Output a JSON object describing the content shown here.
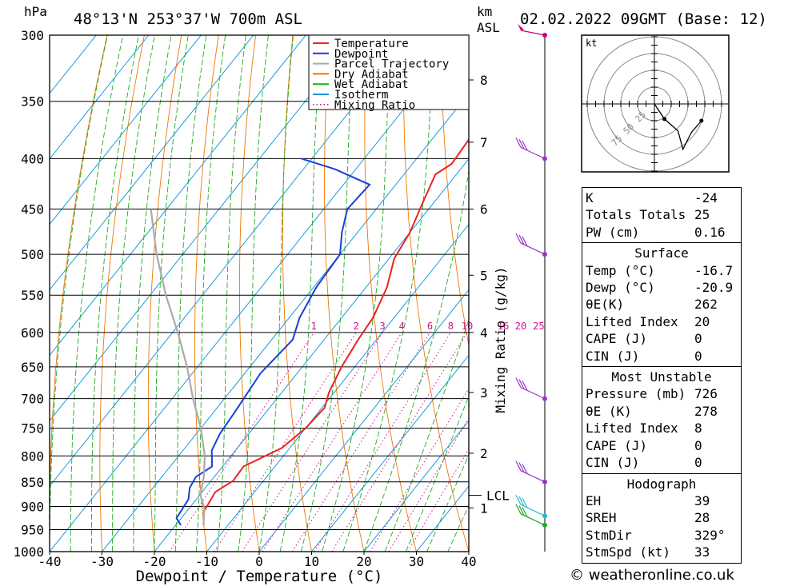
{
  "header": {
    "pressure_unit": "hPa",
    "location": "48°13'N  253°37'W  700m  ASL",
    "km_label": "km",
    "asl_label": "ASL",
    "datetime": "02.02.2022  09GMT  (Base: 12)"
  },
  "legend": [
    {
      "label": "Temperature",
      "color": "#ee2222",
      "style": "solid"
    },
    {
      "label": "Dewpoint",
      "color": "#1a3fd6",
      "style": "solid"
    },
    {
      "label": "Parcel Trajectory",
      "color": "#aaaaaa",
      "style": "solid"
    },
    {
      "label": "Dry Adiabat",
      "color": "#ee7700",
      "style": "solid"
    },
    {
      "label": "Wet Adiabat",
      "color": "#22aa22",
      "style": "solid"
    },
    {
      "label": "Isotherm",
      "color": "#1199dd",
      "style": "solid"
    },
    {
      "label": "Mixing Ratio",
      "color": "#cc1188",
      "style": "dotted"
    }
  ],
  "chart_data": {
    "type": "line",
    "xlabel": "Dewpoint / Temperature (°C)",
    "ylabel_right": "Mixing Ratio (g/kg)",
    "x_ticks": [
      -40,
      -30,
      -20,
      -10,
      0,
      10,
      20,
      30,
      40
    ],
    "pressure_levels": [
      300,
      350,
      400,
      450,
      500,
      550,
      600,
      650,
      700,
      750,
      800,
      850,
      900,
      950,
      1000
    ],
    "km_ticks": [
      {
        "label": "8",
        "p": 333
      },
      {
        "label": "7",
        "p": 385
      },
      {
        "label": "6",
        "p": 450
      },
      {
        "label": "5",
        "p": 525
      },
      {
        "label": "4",
        "p": 600
      },
      {
        "label": "3",
        "p": 690
      },
      {
        "label": "2",
        "p": 795
      },
      {
        "label": "1",
        "p": 903
      }
    ],
    "lcl": {
      "label": "LCL",
      "p": 877
    },
    "mixing_ratio_labels": [
      "1",
      "2",
      "3",
      "4",
      "6",
      "8",
      "10",
      "16",
      "20",
      "25"
    ],
    "mixing_ratio_values": [
      1,
      2,
      3,
      4,
      6,
      8,
      10,
      16,
      20,
      25
    ],
    "series": [
      {
        "name": "Temperature",
        "color": "#ee2222",
        "points": [
          [
            -14.7,
            940
          ],
          [
            -16.7,
            910
          ],
          [
            -17.5,
            870
          ],
          [
            -15.8,
            848
          ],
          [
            -16,
            820
          ],
          [
            -11.5,
            785
          ],
          [
            -10,
            750
          ],
          [
            -9.5,
            715
          ],
          [
            -11,
            690
          ],
          [
            -12.5,
            650
          ],
          [
            -13.5,
            610
          ],
          [
            -14,
            580
          ],
          [
            -16,
            540
          ],
          [
            -19,
            505
          ],
          [
            -20,
            475
          ],
          [
            -22,
            445
          ],
          [
            -24,
            415
          ],
          [
            -22.5,
            405
          ],
          [
            -23.2,
            370
          ],
          [
            -23,
            350
          ],
          [
            -22,
            320
          ],
          [
            -22.4,
            300
          ]
        ]
      },
      {
        "name": "Dewpoint",
        "color": "#1a3fd6",
        "points": [
          [
            -19,
            940
          ],
          [
            -20.9,
            925
          ],
          [
            -21.5,
            885
          ],
          [
            -23,
            862
          ],
          [
            -23.5,
            840
          ],
          [
            -22,
            820
          ],
          [
            -24.5,
            790
          ],
          [
            -25.5,
            760
          ],
          [
            -26,
            720
          ],
          [
            -27,
            660
          ],
          [
            -26,
            610
          ],
          [
            -28,
            580
          ],
          [
            -29.5,
            540
          ],
          [
            -30,
            500
          ],
          [
            -33,
            475
          ],
          [
            -35.5,
            450
          ],
          [
            -35,
            425
          ],
          [
            -44,
            410
          ],
          [
            -52,
            400
          ]
        ]
      },
      {
        "name": "Parcel Trajectory",
        "color": "#aaaaaa",
        "points": [
          [
            -14.7,
            940
          ],
          [
            -17,
            905
          ],
          [
            -19.8,
            877
          ],
          [
            -22,
            840
          ],
          [
            -25,
            800
          ],
          [
            -30,
            750
          ],
          [
            -36,
            700
          ],
          [
            -42,
            650
          ],
          [
            -49,
            600
          ],
          [
            -57,
            550
          ],
          [
            -65,
            500
          ],
          [
            -73,
            450
          ]
        ]
      }
    ]
  },
  "winds": [
    {
      "p": 300,
      "color": "#cc0077"
    },
    {
      "p": 400,
      "color": "#9933cc"
    },
    {
      "p": 500,
      "color": "#9933cc"
    },
    {
      "p": 700,
      "color": "#9933cc"
    },
    {
      "p": 850,
      "color": "#9933cc"
    },
    {
      "p": 920,
      "color": "#22bbcc"
    },
    {
      "p": 940,
      "color": "#22aa22"
    }
  ],
  "hodograph": {
    "unit_label": "kt",
    "ring_labels": [
      "25",
      "50",
      "75"
    ],
    "trace": [
      [
        0,
        0
      ],
      [
        6,
        -9
      ],
      [
        14,
        -16
      ],
      [
        17,
        -27
      ],
      [
        22,
        -17
      ],
      [
        28,
        -10
      ]
    ]
  },
  "indices": {
    "top": [
      {
        "label": "K",
        "value": "-24"
      },
      {
        "label": "Totals Totals",
        "value": "25"
      },
      {
        "label": "PW (cm)",
        "value": "0.16"
      }
    ],
    "surface": {
      "title": "Surface",
      "rows": [
        {
          "label": "Temp (°C)",
          "value": "-16.7"
        },
        {
          "label": "Dewp (°C)",
          "value": "-20.9"
        },
        {
          "label": "θE(K)",
          "value": "262"
        },
        {
          "label": "Lifted Index",
          "value": "20"
        },
        {
          "label": "CAPE (J)",
          "value": "0"
        },
        {
          "label": "CIN (J)",
          "value": "0"
        }
      ]
    },
    "most_unstable": {
      "title": "Most Unstable",
      "rows": [
        {
          "label": "Pressure (mb)",
          "value": "726"
        },
        {
          "label": "θE (K)",
          "value": "278"
        },
        {
          "label": "Lifted Index",
          "value": "8"
        },
        {
          "label": "CAPE (J)",
          "value": "0"
        },
        {
          "label": "CIN (J)",
          "value": "0"
        }
      ]
    },
    "hodo": {
      "title": "Hodograph",
      "rows": [
        {
          "label": "EH",
          "value": "39"
        },
        {
          "label": "SREH",
          "value": "28"
        },
        {
          "label": "StmDir",
          "value": "329°"
        },
        {
          "label": "StmSpd (kt)",
          "value": "33"
        }
      ]
    }
  },
  "credit": "© weatheronline.co.uk"
}
